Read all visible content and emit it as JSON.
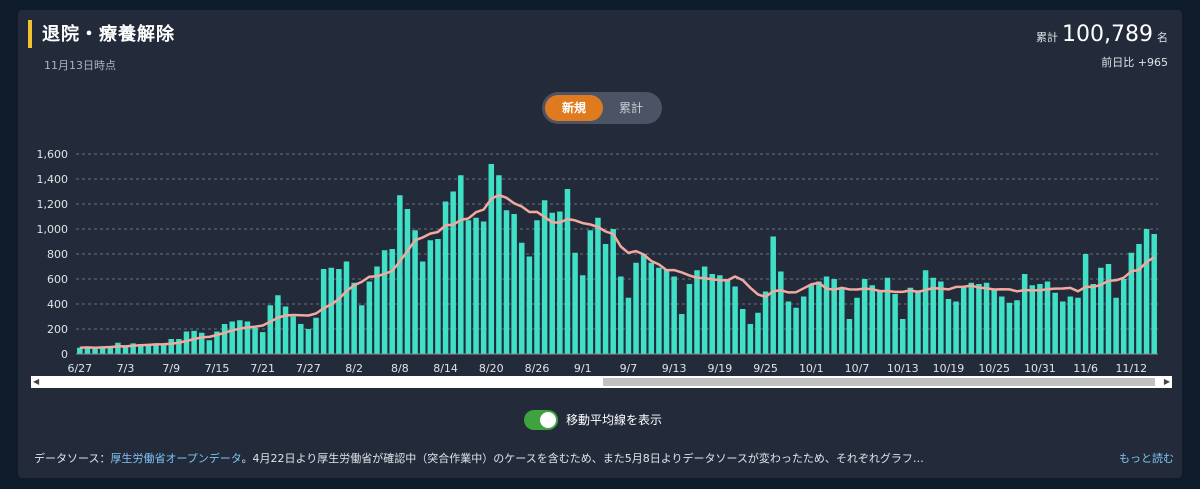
{
  "header": {
    "title": "退院・療養解除",
    "date": "11月13日時点",
    "total_label": "累計",
    "total_value": "100,789",
    "total_unit": "名",
    "diff_text": "前日比 +965"
  },
  "toggle": {
    "new_label": "新規",
    "cumulative_label": "累計"
  },
  "switch": {
    "label": "移動平均線を表示",
    "on": true
  },
  "footer": {
    "prefix": "データソース：",
    "source_link": "厚生労働省オープンデータ",
    "text": "。4月22日より厚生労働省が確認中（突合作業中）のケースを含むため、また5月8日よりデータソースが変わったため、それぞれグラフ…",
    "more_label": "もっと読む"
  },
  "colors": {
    "bar": "#3fe0c5",
    "line": "#f2a9a0",
    "accent": "#e07a1f",
    "title_bar": "#f1c232",
    "grid": "#6a7282"
  },
  "chart_data": {
    "type": "bar",
    "title": "",
    "xlabel": "",
    "ylabel": "",
    "ylim": [
      0,
      1600
    ],
    "yticks": [
      0,
      200,
      400,
      600,
      800,
      1000,
      1200,
      1400,
      1600
    ],
    "ytick_labels": [
      "0",
      "200",
      "400",
      "600",
      "800",
      "1,000",
      "1,200",
      "1,400",
      "1,600"
    ],
    "xtick_labels": [
      "6/27",
      "7/3",
      "7/9",
      "7/15",
      "7/21",
      "7/27",
      "8/2",
      "8/8",
      "8/14",
      "8/20",
      "8/26",
      "9/1",
      "9/7",
      "9/13",
      "9/19",
      "9/25",
      "10/1",
      "10/7",
      "10/13",
      "10/19",
      "10/25",
      "10/31",
      "11/6",
      "11/12"
    ],
    "xtick_every": 6,
    "series": [
      {
        "type": "bar",
        "values": [
          50,
          55,
          45,
          60,
          65,
          90,
          60,
          85,
          80,
          70,
          85,
          75,
          120,
          120,
          180,
          185,
          170,
          110,
          180,
          240,
          260,
          270,
          260,
          210,
          175,
          390,
          470,
          380,
          300,
          240,
          200,
          290,
          680,
          690,
          680,
          740,
          570,
          390,
          580,
          700,
          830,
          840,
          1270,
          1160,
          990,
          740,
          910,
          920,
          1220,
          1300,
          1430,
          1070,
          1090,
          1060,
          1520,
          1430,
          1150,
          1120,
          890,
          780,
          1070,
          1230,
          1130,
          1140,
          1320,
          810,
          630,
          990,
          1090,
          880,
          1000,
          620,
          450,
          730,
          800,
          730,
          690,
          680,
          620,
          320,
          560,
          670,
          700,
          640,
          630,
          600,
          540,
          360,
          240,
          330,
          500,
          940,
          660,
          420,
          370,
          460,
          550,
          580,
          620,
          600,
          530,
          280,
          450,
          600,
          550,
          510,
          610,
          480,
          280,
          530,
          510,
          670,
          610,
          580,
          440,
          420,
          540,
          570,
          560,
          570,
          510,
          460,
          410,
          430,
          640,
          550,
          560,
          580,
          490,
          420,
          460,
          450,
          800,
          560,
          690,
          720,
          450,
          600,
          810,
          880,
          1000,
          960
        ]
      }
    ]
  }
}
